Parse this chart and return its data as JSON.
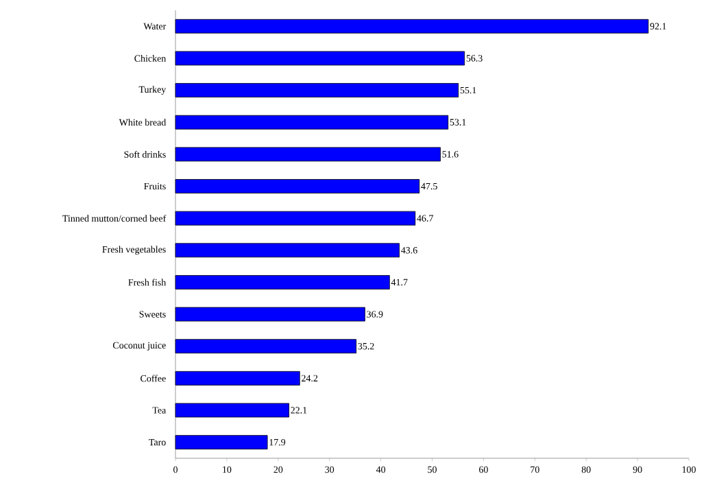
{
  "chart_data": {
    "type": "bar",
    "orientation": "horizontal",
    "categories": [
      "Water",
      "Chicken",
      "Turkey",
      "White bread",
      "Soft drinks",
      "Fruits",
      "Tinned mutton/corned beef",
      "Fresh vegetables",
      "Fresh fish",
      "Sweets",
      "Coconut juice",
      "Coffee",
      "Tea",
      "Taro"
    ],
    "values": [
      92.1,
      56.3,
      55.1,
      53.1,
      51.6,
      47.5,
      46.7,
      43.6,
      41.7,
      36.9,
      35.2,
      24.2,
      22.1,
      17.9
    ],
    "color": "#0000ff",
    "data_labels": true,
    "grid": false,
    "xlim": [
      0,
      100
    ],
    "xticks": [
      0,
      10,
      20,
      30,
      40,
      50,
      60,
      70,
      80,
      90,
      100
    ]
  }
}
